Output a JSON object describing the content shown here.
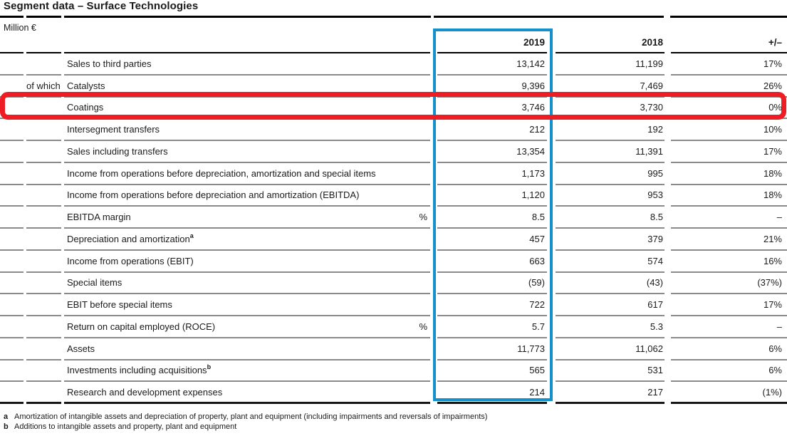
{
  "title": "Segment data – Surface Technologies",
  "unit": "Million €",
  "highlights": {
    "column_box_color": "#1690ca",
    "row_box_color": "#ee1c23",
    "highlighted_column": "2019",
    "highlighted_row": "Coatings"
  },
  "table": {
    "columns": [
      "2019",
      "2018",
      "+/–"
    ],
    "rows": [
      {
        "label": "Sales to third parties",
        "values": [
          "13,142",
          "11,199",
          "17%"
        ]
      },
      {
        "prefix": "of which",
        "label": "Catalysts",
        "values": [
          "9,396",
          "7,469",
          "26%"
        ]
      },
      {
        "label": "Coatings",
        "highlighted": "true",
        "values": [
          "3,746",
          "3,730",
          "0%"
        ]
      },
      {
        "label": "Intersegment transfers",
        "values": [
          "212",
          "192",
          "10%"
        ]
      },
      {
        "label": "Sales including transfers",
        "values": [
          "13,354",
          "11,391",
          "17%"
        ]
      },
      {
        "label": "Income from operations before depreciation, amortization and special items",
        "values": [
          "1,173",
          "995",
          "18%"
        ]
      },
      {
        "label": "Income from operations before depreciation and amortization (EBITDA)",
        "values": [
          "1,120",
          "953",
          "18%"
        ]
      },
      {
        "label": "EBITDA margin",
        "unit": "%",
        "values": [
          "8.5",
          "8.5",
          "–"
        ]
      },
      {
        "label": "Depreciation and amortization",
        "sup": "a",
        "values": [
          "457",
          "379",
          "21%"
        ]
      },
      {
        "label": "Income from operations (EBIT)",
        "values": [
          "663",
          "574",
          "16%"
        ]
      },
      {
        "label": "Special items",
        "values": [
          "(59)",
          "(43)",
          "(37%)"
        ]
      },
      {
        "label": "EBIT before special items",
        "values": [
          "722",
          "617",
          "17%"
        ]
      },
      {
        "label": "Return on capital employed (ROCE)",
        "unit": "%",
        "values": [
          "5.7",
          "5.3",
          "–"
        ]
      },
      {
        "label": "Assets",
        "values": [
          "11,773",
          "11,062",
          "6%"
        ]
      },
      {
        "label": "Investments including acquisitions",
        "sup": "b",
        "values": [
          "565",
          "531",
          "6%"
        ]
      },
      {
        "label": "Research and development expenses",
        "values": [
          "214",
          "217",
          "(1%)"
        ]
      }
    ]
  },
  "footnotes": [
    {
      "marker": "a",
      "text": "Amortization of intangible assets and depreciation of property, plant and equipment (including impairments and reversals of impairments)"
    },
    {
      "marker": "b",
      "text": "Additions to intangible assets and property, plant and equipment"
    }
  ]
}
